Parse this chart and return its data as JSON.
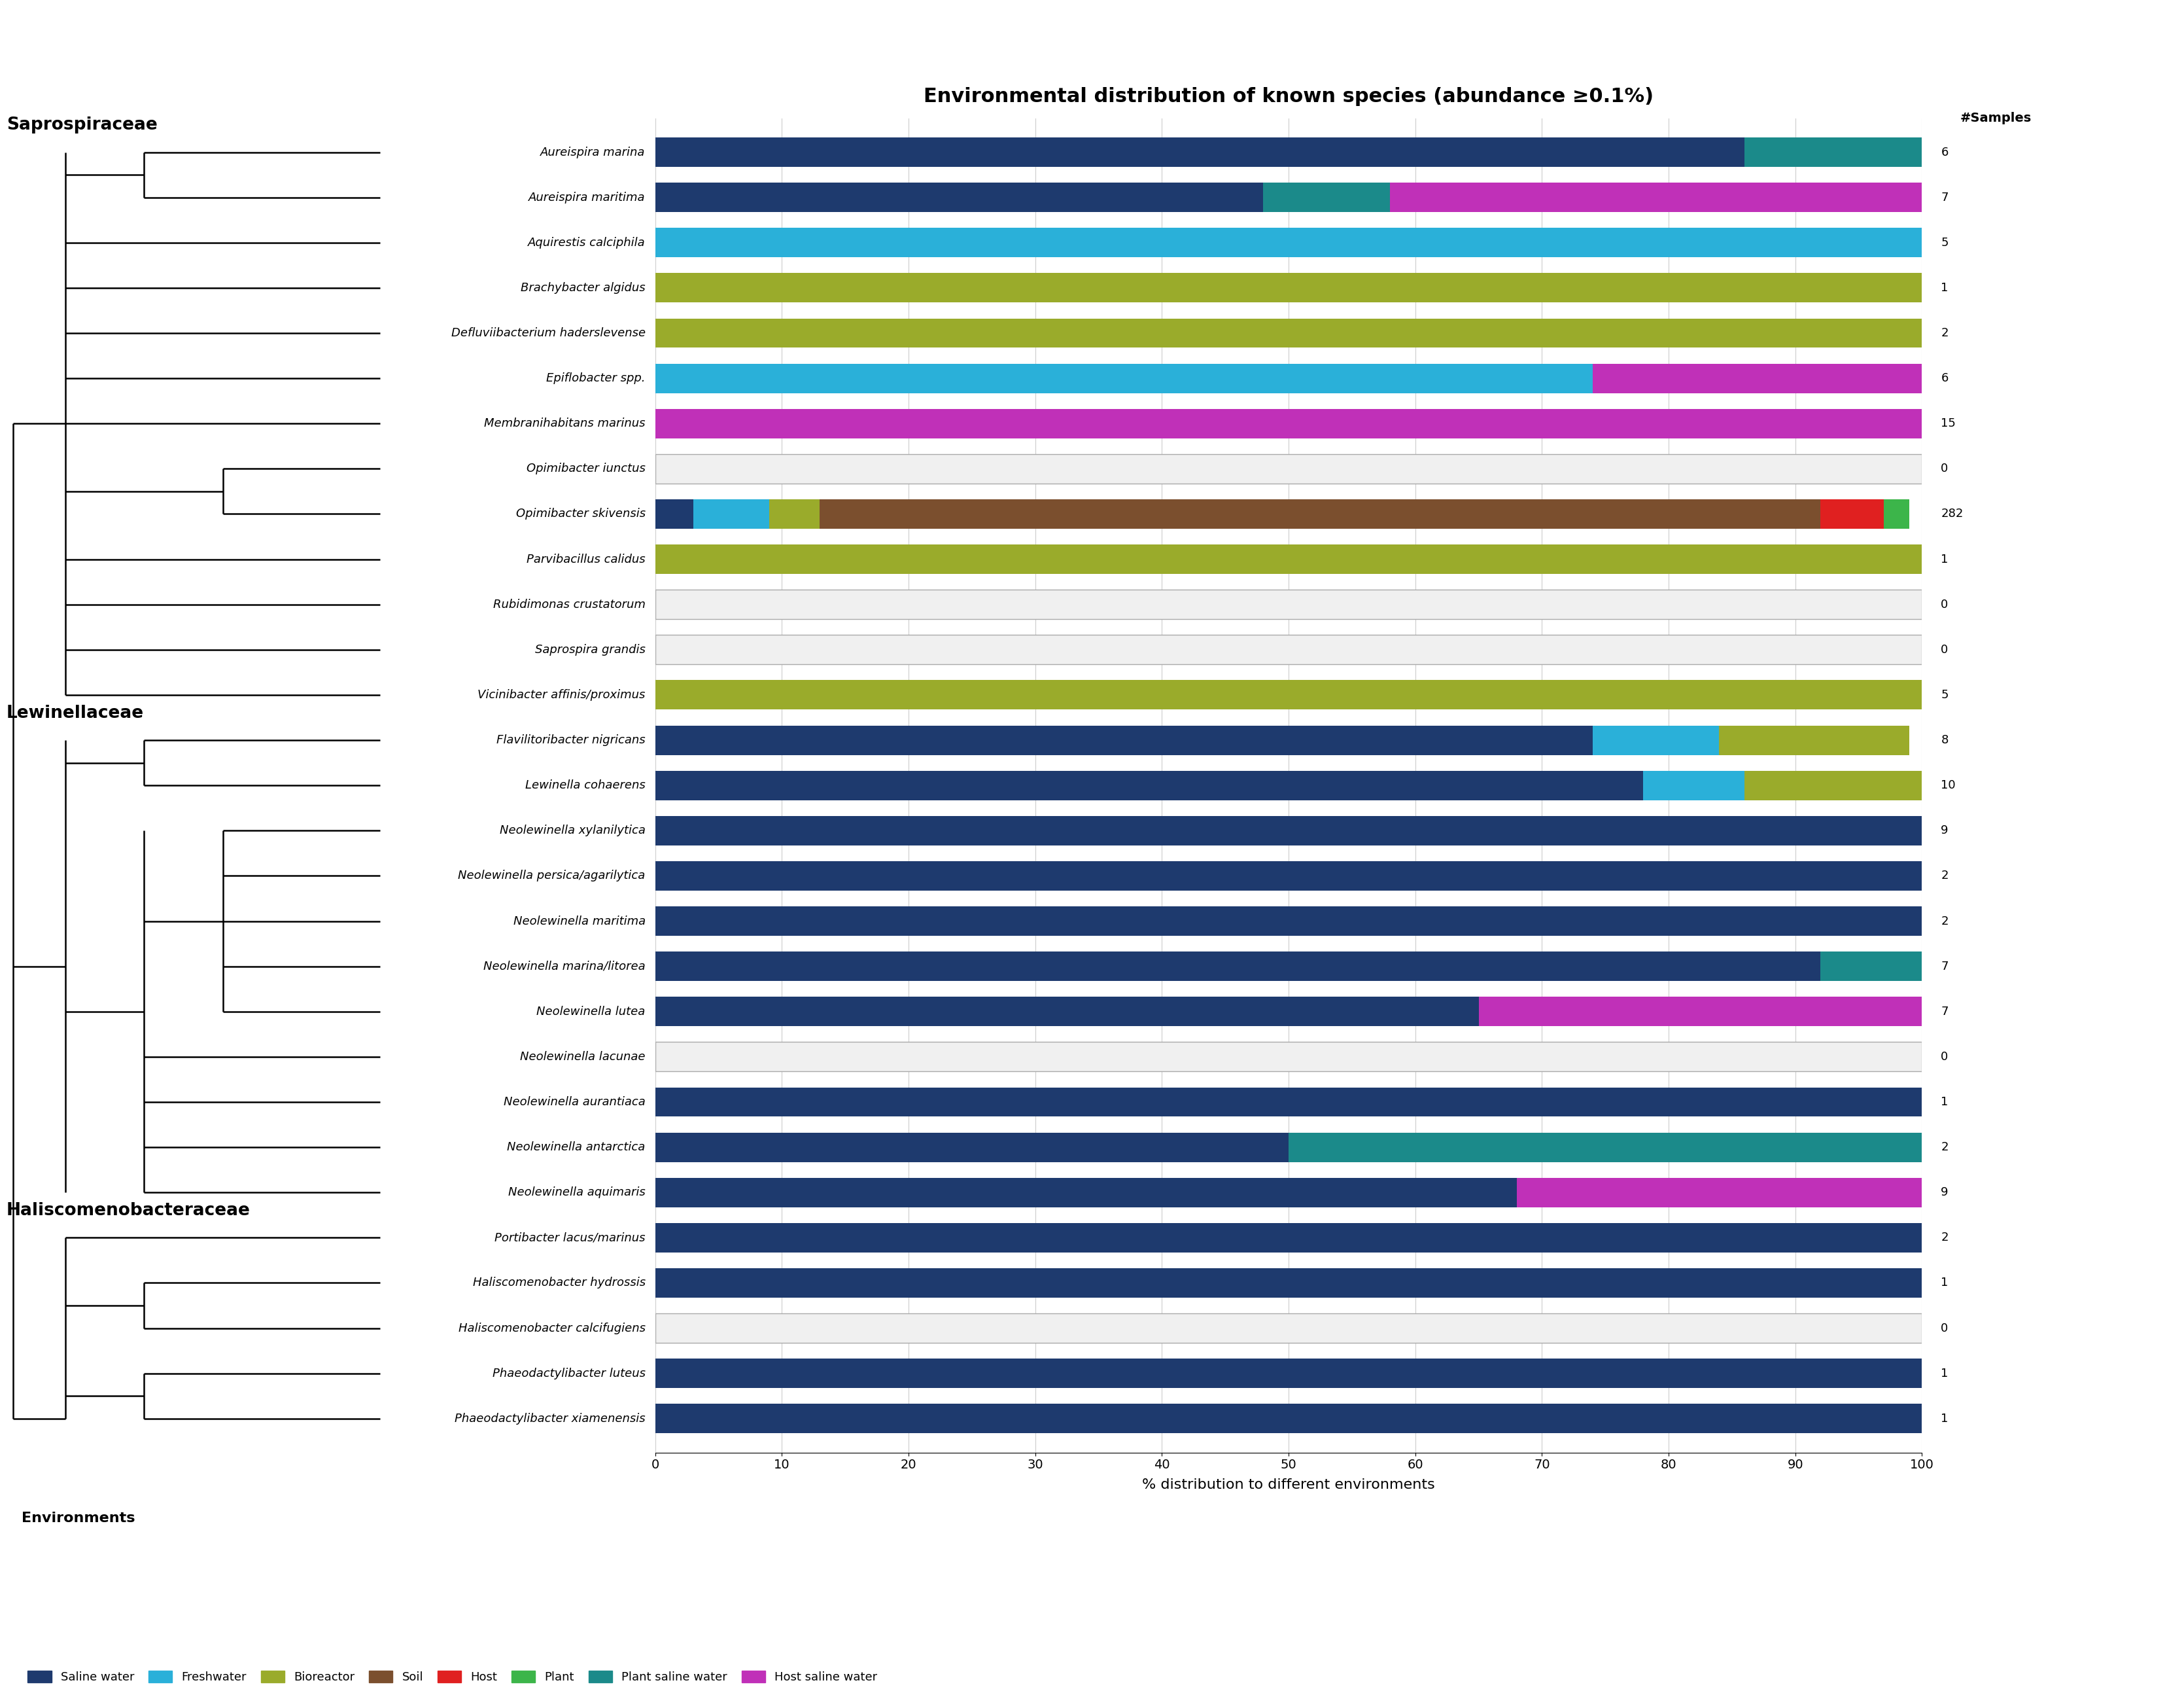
{
  "title": "Environmental distribution of known species (abundance ≥0.1%)",
  "xlabel": "% distribution to different environments",
  "samples_label": "#Samples",
  "environments": [
    "Saline water",
    "Freshwater",
    "Bioreactor",
    "Soil",
    "Host",
    "Plant",
    "Plant saline water",
    "Host saline water"
  ],
  "colors": [
    "#1e3a6e",
    "#2ab0d9",
    "#9aab2b",
    "#7b4f2e",
    "#e02020",
    "#3cb54a",
    "#1b8a8a",
    "#c030b8"
  ],
  "species": [
    "Aureispira marina",
    "Aureispira maritima",
    "Aquirestis calciphila",
    "Brachybacter algidus",
    "Defluviibacterium haderslevense",
    "Epiflobacter spp.",
    "Membranihabitans marinus",
    "Opimibacter iunctus",
    "Opimibacter skivensis",
    "Parvibacillus calidus",
    "Rubidimonas crustatorum",
    "Saprospira grandis",
    "Vicinibacter affinis/proximus",
    "Flavilitoribacter nigricans",
    "Lewinella cohaerens",
    "Neolewinella xylanilytica",
    "Neolewinella persica/agarilytica",
    "Neolewinella maritima",
    "Neolewinella marina/litorea",
    "Neolewinella lutea",
    "Neolewinella lacunae",
    "Neolewinella aurantiaca",
    "Neolewinella antarctica",
    "Neolewinella aquimaris",
    "Portibacter lacus/marinus",
    "Haliscomenobacter hydrossis",
    "Haliscomenobacter calcifugiens",
    "Phaeodactylibacter luteus",
    "Phaeodactylibacter xiamenensis"
  ],
  "n_samples": [
    6,
    7,
    5,
    1,
    2,
    6,
    15,
    0,
    282,
    1,
    0,
    0,
    5,
    8,
    10,
    9,
    2,
    2,
    7,
    7,
    0,
    1,
    2,
    9,
    2,
    1,
    0,
    1,
    1
  ],
  "data": [
    [
      86,
      0,
      0,
      0,
      0,
      0,
      14,
      0
    ],
    [
      48,
      0,
      0,
      0,
      0,
      0,
      10,
      42
    ],
    [
      0,
      100,
      0,
      0,
      0,
      0,
      0,
      0
    ],
    [
      0,
      0,
      100,
      0,
      0,
      0,
      0,
      0
    ],
    [
      0,
      0,
      100,
      0,
      0,
      0,
      0,
      0
    ],
    [
      0,
      74,
      0,
      0,
      0,
      0,
      0,
      26
    ],
    [
      0,
      0,
      0,
      0,
      0,
      0,
      0,
      100
    ],
    [
      0,
      0,
      0,
      0,
      0,
      0,
      0,
      0
    ],
    [
      3,
      6,
      4,
      79,
      5,
      2,
      0,
      0
    ],
    [
      0,
      0,
      100,
      0,
      0,
      0,
      0,
      0
    ],
    [
      0,
      0,
      0,
      0,
      0,
      0,
      0,
      0
    ],
    [
      0,
      0,
      0,
      0,
      0,
      0,
      0,
      0
    ],
    [
      0,
      0,
      100,
      0,
      0,
      0,
      0,
      0
    ],
    [
      74,
      10,
      15,
      0,
      0,
      0,
      0,
      0
    ],
    [
      78,
      8,
      14,
      0,
      0,
      0,
      0,
      0
    ],
    [
      100,
      0,
      0,
      0,
      0,
      0,
      0,
      0
    ],
    [
      100,
      0,
      0,
      0,
      0,
      0,
      0,
      0
    ],
    [
      100,
      0,
      0,
      0,
      0,
      0,
      0,
      0
    ],
    [
      92,
      0,
      0,
      0,
      0,
      0,
      8,
      0
    ],
    [
      65,
      0,
      0,
      0,
      0,
      0,
      0,
      35
    ],
    [
      0,
      0,
      0,
      0,
      0,
      0,
      0,
      0
    ],
    [
      100,
      0,
      0,
      0,
      0,
      0,
      0,
      0
    ],
    [
      50,
      0,
      0,
      0,
      0,
      0,
      50,
      0
    ],
    [
      68,
      0,
      0,
      0,
      0,
      0,
      0,
      32
    ],
    [
      100,
      0,
      0,
      0,
      0,
      0,
      0,
      0
    ],
    [
      100,
      0,
      0,
      0,
      0,
      0,
      0,
      0
    ],
    [
      0,
      0,
      0,
      0,
      0,
      0,
      0,
      0
    ],
    [
      100,
      0,
      0,
      0,
      0,
      0,
      0,
      0
    ],
    [
      100,
      0,
      0,
      0,
      0,
      0,
      0,
      0
    ]
  ],
  "families": [
    {
      "name": "Saprospiraceae",
      "start": 0,
      "end": 12
    },
    {
      "name": "Lewinellaceae",
      "start": 13,
      "end": 23
    },
    {
      "name": "Haliscomenobacteraceae",
      "start": 24,
      "end": 28
    }
  ]
}
